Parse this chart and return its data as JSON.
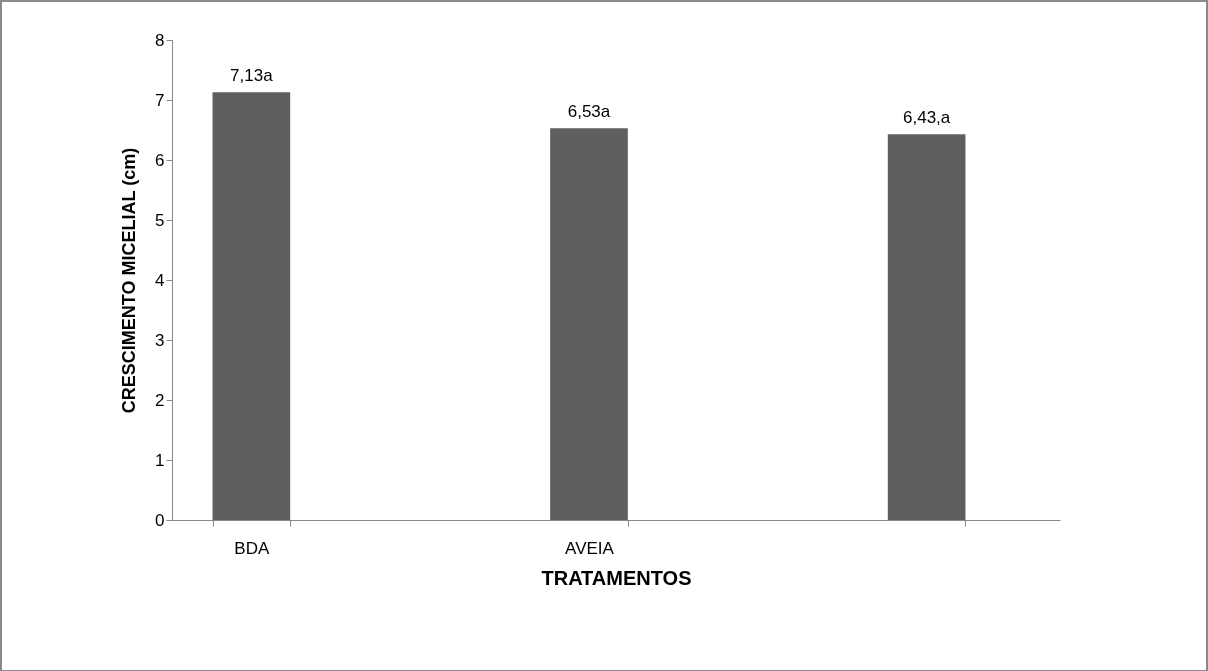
{
  "chart_data": {
    "type": "bar",
    "xlabel": "TRATAMENTOS",
    "ylabel": "CRESCIMENTO MICELIAL (cm)",
    "categories": [
      "BDA",
      "AVEIA",
      null
    ],
    "values": [
      7.13,
      6.53,
      6.43
    ],
    "value_labels": [
      "7,13a",
      "6,53a",
      "6,43,a"
    ],
    "color": "#5f5f5f",
    "ylim": [
      0,
      8
    ],
    "yticks": [
      0,
      1,
      2,
      3,
      4,
      5,
      6,
      7,
      8
    ],
    "grid": false
  }
}
